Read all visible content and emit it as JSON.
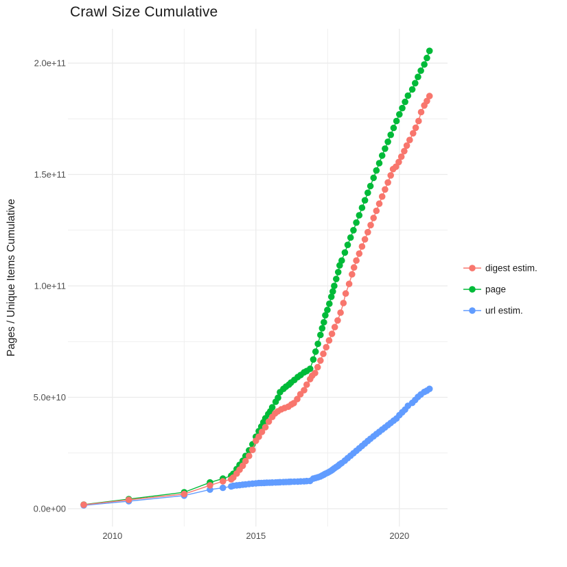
{
  "title": "Crawl Size Cumulative",
  "colors": {
    "background": "#ffffff",
    "grid": "#ebebeb",
    "tick_text": "#4d4d4d",
    "title_text": "#1a1a1a",
    "digest": "#F8766D",
    "page": "#00BA38",
    "url": "#619CFF"
  },
  "chart_data": {
    "type": "scatter",
    "title": "Crawl Size Cumulative",
    "xlabel": "",
    "ylabel": "Pages / Unique Items Cumulative",
    "grid": true,
    "legend_position": "right-center",
    "x_ticks": [
      {
        "value": 2010,
        "label": "2010"
      },
      {
        "value": 2015,
        "label": "2015"
      },
      {
        "value": 2020,
        "label": "2020"
      }
    ],
    "x_minor_ticks": [
      2012.5,
      2017.5
    ],
    "y_ticks": [
      {
        "value_e9": 0,
        "label": "0.0e+00"
      },
      {
        "value_e9": 50,
        "label": "5.0e+10"
      },
      {
        "value_e9": 100,
        "label": "1.0e+11"
      },
      {
        "value_e9": 150,
        "label": "1.5e+11"
      },
      {
        "value_e9": 200,
        "label": "2.0e+11"
      }
    ],
    "y_minor_ticks_e9": [
      25,
      75,
      125,
      175
    ],
    "x_range": [
      2008.45,
      2021.68
    ],
    "y_range_e9": [
      -8,
      215.4
    ],
    "note_units": "point values stored as billions (1e9) of items; x as decimal year",
    "legend": [
      {
        "label": "digest estim.",
        "color": "#F8766D"
      },
      {
        "label": "page",
        "color": "#00BA38"
      },
      {
        "label": "url estim.",
        "color": "#619CFF"
      }
    ],
    "series": [
      {
        "name": "page",
        "color": "#00BA38",
        "points": [
          [
            2009.0,
            1.85
          ],
          [
            2010.57,
            4.3
          ],
          [
            2012.5,
            7.4
          ],
          [
            2013.4,
            11.8
          ],
          [
            2013.85,
            13.5
          ],
          [
            2014.14,
            14.8
          ],
          [
            2014.21,
            15.7
          ],
          [
            2014.33,
            17.8
          ],
          [
            2014.43,
            19.7
          ],
          [
            2014.54,
            21.5
          ],
          [
            2014.64,
            23.7
          ],
          [
            2014.76,
            26.2
          ],
          [
            2014.88,
            28.9
          ],
          [
            2015.0,
            32.3
          ],
          [
            2015.1,
            34.8
          ],
          [
            2015.19,
            36.9
          ],
          [
            2015.26,
            38.8
          ],
          [
            2015.33,
            40.6
          ],
          [
            2015.43,
            42.5
          ],
          [
            2015.5,
            43.7
          ],
          [
            2015.57,
            45.5
          ],
          [
            2015.69,
            48.0
          ],
          [
            2015.77,
            49.8
          ],
          [
            2015.84,
            52.3
          ],
          [
            2015.96,
            53.8
          ],
          [
            2016.05,
            54.8
          ],
          [
            2016.15,
            55.7
          ],
          [
            2016.22,
            56.6
          ],
          [
            2016.34,
            57.8
          ],
          [
            2016.46,
            59.1
          ],
          [
            2016.56,
            60.0
          ],
          [
            2016.68,
            61.2
          ],
          [
            2016.77,
            61.8
          ],
          [
            2016.89,
            62.8
          ],
          [
            2017.0,
            67.0
          ],
          [
            2017.08,
            70.5
          ],
          [
            2017.16,
            74.0
          ],
          [
            2017.25,
            78.0
          ],
          [
            2017.31,
            81.0
          ],
          [
            2017.37,
            83.7
          ],
          [
            2017.42,
            86.8
          ],
          [
            2017.49,
            89.2
          ],
          [
            2017.56,
            92.0
          ],
          [
            2017.63,
            95.1
          ],
          [
            2017.68,
            97.5
          ],
          [
            2017.73,
            100.0
          ],
          [
            2017.8,
            103.1
          ],
          [
            2017.87,
            106.2
          ],
          [
            2017.92,
            109.2
          ],
          [
            2017.99,
            111.4
          ],
          [
            2018.1,
            115.0
          ],
          [
            2018.2,
            118.4
          ],
          [
            2018.3,
            121.7
          ],
          [
            2018.4,
            125.0
          ],
          [
            2018.5,
            128.4
          ],
          [
            2018.6,
            131.7
          ],
          [
            2018.7,
            135.1
          ],
          [
            2018.8,
            138.4
          ],
          [
            2018.9,
            141.8
          ],
          [
            2018.99,
            144.8
          ],
          [
            2019.1,
            148.5
          ],
          [
            2019.2,
            151.8
          ],
          [
            2019.3,
            155.1
          ],
          [
            2019.4,
            158.5
          ],
          [
            2019.5,
            161.6
          ],
          [
            2019.6,
            164.7
          ],
          [
            2019.7,
            167.8
          ],
          [
            2019.8,
            170.9
          ],
          [
            2019.9,
            174.0
          ],
          [
            2020.0,
            177.0
          ],
          [
            2020.1,
            179.8
          ],
          [
            2020.2,
            182.6
          ],
          [
            2020.3,
            185.4
          ],
          [
            2020.45,
            188.2
          ],
          [
            2020.55,
            191.0
          ],
          [
            2020.65,
            193.8
          ],
          [
            2020.75,
            196.6
          ],
          [
            2020.87,
            199.4
          ],
          [
            2020.96,
            202.3
          ],
          [
            2021.05,
            205.5
          ]
        ]
      },
      {
        "name": "url estim.",
        "color": "#619CFF",
        "points": [
          [
            2009.0,
            1.5
          ],
          [
            2010.57,
            3.4
          ],
          [
            2012.5,
            5.9
          ],
          [
            2013.4,
            8.6
          ],
          [
            2013.85,
            9.4
          ],
          [
            2014.14,
            10.0
          ],
          [
            2014.21,
            10.3
          ],
          [
            2014.33,
            10.5
          ],
          [
            2014.43,
            10.6
          ],
          [
            2014.54,
            10.8
          ],
          [
            2014.64,
            10.9
          ],
          [
            2014.76,
            11.1
          ],
          [
            2014.88,
            11.25
          ],
          [
            2015.0,
            11.4
          ],
          [
            2015.1,
            11.5
          ],
          [
            2015.19,
            11.55
          ],
          [
            2015.29,
            11.6
          ],
          [
            2015.38,
            11.65
          ],
          [
            2015.48,
            11.7
          ],
          [
            2015.57,
            11.75
          ],
          [
            2015.69,
            11.8
          ],
          [
            2015.77,
            11.85
          ],
          [
            2015.84,
            11.9
          ],
          [
            2015.96,
            11.95
          ],
          [
            2016.05,
            12.0
          ],
          [
            2016.15,
            12.05
          ],
          [
            2016.22,
            12.1
          ],
          [
            2016.34,
            12.15
          ],
          [
            2016.46,
            12.2
          ],
          [
            2016.56,
            12.25
          ],
          [
            2016.68,
            12.3
          ],
          [
            2016.77,
            12.4
          ],
          [
            2016.89,
            12.5
          ],
          [
            2017.0,
            13.5
          ],
          [
            2017.08,
            13.8
          ],
          [
            2017.16,
            14.1
          ],
          [
            2017.25,
            14.5
          ],
          [
            2017.31,
            14.9
          ],
          [
            2017.37,
            15.3
          ],
          [
            2017.42,
            15.7
          ],
          [
            2017.49,
            16.1
          ],
          [
            2017.56,
            16.6
          ],
          [
            2017.63,
            17.1
          ],
          [
            2017.68,
            17.6
          ],
          [
            2017.73,
            18.1
          ],
          [
            2017.8,
            18.7
          ],
          [
            2017.87,
            19.3
          ],
          [
            2017.92,
            19.9
          ],
          [
            2017.99,
            20.5
          ],
          [
            2018.1,
            21.6
          ],
          [
            2018.2,
            22.7
          ],
          [
            2018.3,
            23.8
          ],
          [
            2018.4,
            24.9
          ],
          [
            2018.5,
            26.0
          ],
          [
            2018.6,
            27.1
          ],
          [
            2018.7,
            28.2
          ],
          [
            2018.8,
            29.3
          ],
          [
            2018.9,
            30.4
          ],
          [
            2018.99,
            31.4
          ],
          [
            2019.1,
            32.5
          ],
          [
            2019.2,
            33.5
          ],
          [
            2019.3,
            34.5
          ],
          [
            2019.4,
            35.5
          ],
          [
            2019.5,
            36.5
          ],
          [
            2019.6,
            37.5
          ],
          [
            2019.7,
            38.5
          ],
          [
            2019.8,
            39.5
          ],
          [
            2019.9,
            40.5
          ],
          [
            2020.0,
            42.0
          ],
          [
            2020.1,
            43.3
          ],
          [
            2020.2,
            44.5
          ],
          [
            2020.3,
            46.2
          ],
          [
            2020.45,
            47.5
          ],
          [
            2020.55,
            48.8
          ],
          [
            2020.65,
            50.2
          ],
          [
            2020.75,
            51.3
          ],
          [
            2020.87,
            52.4
          ],
          [
            2020.96,
            53.0
          ],
          [
            2021.05,
            53.8
          ]
        ]
      },
      {
        "name": "digest estim.",
        "color": "#F8766D",
        "points": [
          [
            2009.0,
            1.8
          ],
          [
            2010.57,
            4.0
          ],
          [
            2012.5,
            6.6
          ],
          [
            2013.4,
            10.5
          ],
          [
            2013.85,
            12.3
          ],
          [
            2014.14,
            13.2
          ],
          [
            2014.21,
            14.0
          ],
          [
            2014.33,
            15.8
          ],
          [
            2014.43,
            17.5
          ],
          [
            2014.54,
            19.3
          ],
          [
            2014.64,
            21.4
          ],
          [
            2014.76,
            23.7
          ],
          [
            2014.88,
            26.4
          ],
          [
            2015.0,
            30.5
          ],
          [
            2015.1,
            32.3
          ],
          [
            2015.21,
            34.5
          ],
          [
            2015.33,
            36.6
          ],
          [
            2015.45,
            39.1
          ],
          [
            2015.57,
            41.2
          ],
          [
            2015.67,
            42.8
          ],
          [
            2015.76,
            43.7
          ],
          [
            2015.88,
            44.6
          ],
          [
            2016.0,
            45.2
          ],
          [
            2016.13,
            45.8
          ],
          [
            2016.24,
            46.8
          ],
          [
            2016.32,
            47.4
          ],
          [
            2016.44,
            49.2
          ],
          [
            2016.55,
            51.4
          ],
          [
            2016.68,
            53.2
          ],
          [
            2016.77,
            55.7
          ],
          [
            2016.89,
            58.2
          ],
          [
            2016.96,
            59.7
          ],
          [
            2017.06,
            60.9
          ],
          [
            2017.15,
            63.5
          ],
          [
            2017.25,
            66.5
          ],
          [
            2017.35,
            69.5
          ],
          [
            2017.45,
            72.5
          ],
          [
            2017.55,
            75.5
          ],
          [
            2017.65,
            78.5
          ],
          [
            2017.75,
            81.5
          ],
          [
            2017.85,
            84.5
          ],
          [
            2017.95,
            88.0
          ],
          [
            2018.05,
            92.3
          ],
          [
            2018.13,
            96.6
          ],
          [
            2018.25,
            100.9
          ],
          [
            2018.35,
            105.2
          ],
          [
            2018.42,
            108.3
          ],
          [
            2018.5,
            111.4
          ],
          [
            2018.6,
            114.5
          ],
          [
            2018.7,
            117.7
          ],
          [
            2018.8,
            120.9
          ],
          [
            2018.9,
            124.1
          ],
          [
            2019.0,
            127.3
          ],
          [
            2019.1,
            130.5
          ],
          [
            2019.2,
            133.7
          ],
          [
            2019.3,
            136.9
          ],
          [
            2019.4,
            140.1
          ],
          [
            2019.5,
            143.3
          ],
          [
            2019.6,
            146.4
          ],
          [
            2019.7,
            149.6
          ],
          [
            2019.78,
            152.4
          ],
          [
            2019.88,
            153.5
          ],
          [
            2019.98,
            155.6
          ],
          [
            2020.07,
            158.0
          ],
          [
            2020.17,
            160.5
          ],
          [
            2020.26,
            163.0
          ],
          [
            2020.36,
            165.5
          ],
          [
            2020.48,
            168.5
          ],
          [
            2020.57,
            171.0
          ],
          [
            2020.67,
            174.0
          ],
          [
            2020.76,
            178.0
          ],
          [
            2020.87,
            181.0
          ],
          [
            2020.96,
            183.0
          ],
          [
            2021.05,
            185.2
          ]
        ]
      }
    ]
  }
}
